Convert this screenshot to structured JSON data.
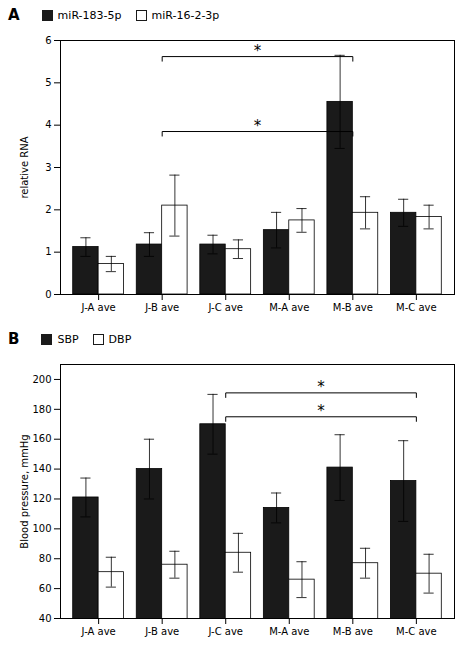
{
  "chart_data": [
    {
      "type": "bar",
      "title": "A",
      "ylabel": "relative RNA",
      "categories": [
        "J-A ave",
        "J-B ave",
        "J-C ave",
        "M-A ave",
        "M-B ave",
        "M-C ave"
      ],
      "series": [
        {
          "name": "miR-183-5p",
          "color": "#1a1a1a",
          "values": [
            1.12,
            1.18,
            1.18,
            1.52,
            4.55,
            1.93
          ],
          "errors": [
            0.22,
            0.28,
            0.22,
            0.42,
            1.1,
            0.32
          ]
        },
        {
          "name": "miR-16-2-3p",
          "color": "#ffffff",
          "values": [
            0.72,
            2.1,
            1.07,
            1.75,
            1.93,
            1.83
          ],
          "errors": [
            0.18,
            0.72,
            0.22,
            0.28,
            0.38,
            0.28
          ]
        }
      ],
      "ylim": [
        0,
        6
      ],
      "yticks": [
        0,
        1,
        2,
        3,
        4,
        5,
        6
      ],
      "grid": false,
      "legend": "upper left",
      "annotations": [
        {
          "text": "*",
          "x1": "J-B ave",
          "x2": "M-B ave",
          "y": 3.85
        },
        {
          "text": "*",
          "x1": "J-B ave",
          "x2": "M-B ave",
          "y": 5.62
        }
      ]
    },
    {
      "type": "bar",
      "title": "B",
      "ylabel": "Blood pressure, mmHg",
      "categories": [
        "J-A ave",
        "J-B ave",
        "J-C ave",
        "M-A ave",
        "M-B ave",
        "M-C ave"
      ],
      "series": [
        {
          "name": "SBP",
          "color": "#1a1a1a",
          "values": [
            121,
            140,
            170,
            114,
            141,
            132
          ],
          "errors": [
            13,
            20,
            20,
            10,
            22,
            27
          ]
        },
        {
          "name": "DBP",
          "color": "#ffffff",
          "values": [
            71,
            76,
            84,
            66,
            77,
            70
          ],
          "errors": [
            10,
            9,
            13,
            12,
            10,
            13
          ]
        }
      ],
      "ylim": [
        40,
        210
      ],
      "yticks": [
        40,
        60,
        80,
        100,
        120,
        140,
        160,
        180,
        200
      ],
      "grid": false,
      "legend": "upper left",
      "annotations": [
        {
          "text": "*",
          "x1": "J-C ave",
          "x2": "M-C ave",
          "y": 175
        },
        {
          "text": "*",
          "x1": "J-C ave",
          "x2": "M-C ave",
          "y": 191
        }
      ]
    }
  ]
}
